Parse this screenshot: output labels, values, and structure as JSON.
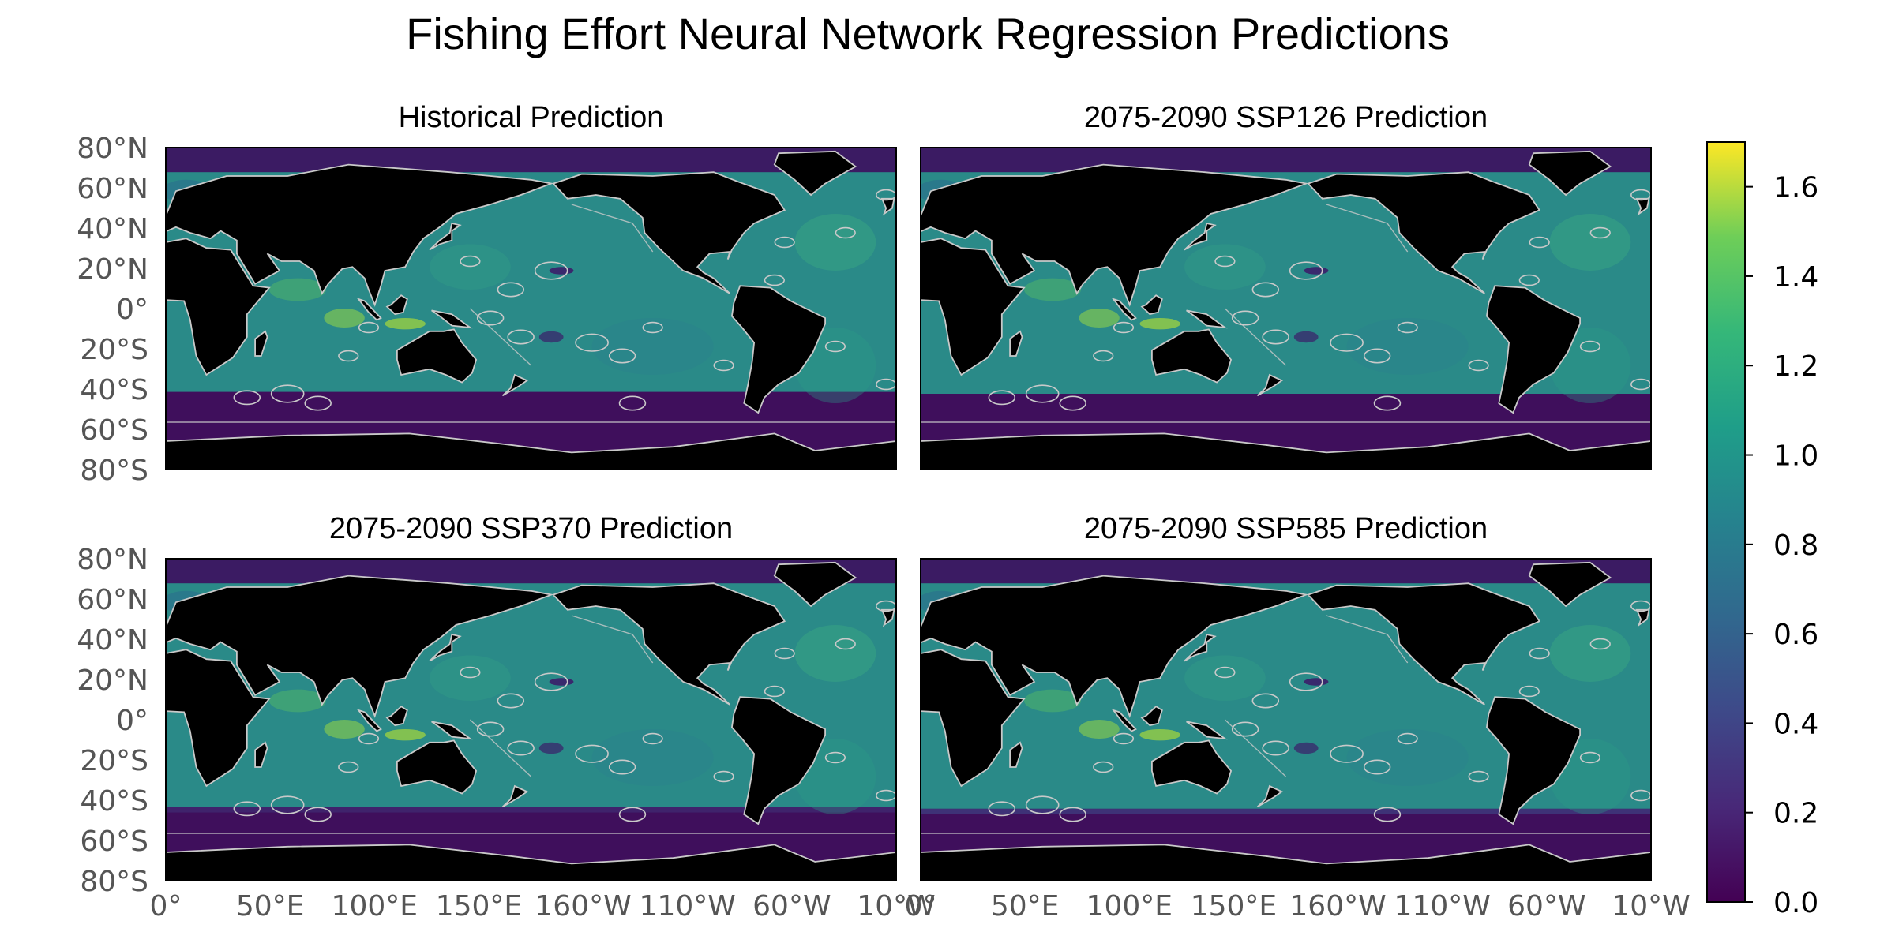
{
  "chart_data": {
    "type": "heatmap",
    "title": "Fishing Effort Neural Network Regression Predictions",
    "panels": [
      {
        "title": "Historical Prediction",
        "scenario": "historical"
      },
      {
        "title": "2075-2090 SSP126 Prediction",
        "scenario": "ssp126"
      },
      {
        "title": "2075-2090 SSP370 Prediction",
        "scenario": "ssp370"
      },
      {
        "title": "2075-2090 SSP585 Prediction",
        "scenario": "ssp585"
      }
    ],
    "x_ticks": [
      "0°",
      "50°E",
      "100°E",
      "150°E",
      "160°W",
      "110°W",
      "60°W",
      "10°W"
    ],
    "y_ticks": [
      "80°N",
      "60°N",
      "40°N",
      "20°N",
      "0°",
      "20°S",
      "40°S",
      "60°S",
      "80°S"
    ],
    "colorbar": {
      "ticks": [
        "0.0",
        "0.2",
        "0.4",
        "0.6",
        "0.8",
        "1.0",
        "1.2",
        "1.4",
        "1.6"
      ],
      "range": [
        0.0,
        1.7
      ],
      "colormap": "viridis"
    },
    "colors": {
      "land": "#000000",
      "boundary_lines": "#c9c9c9",
      "southern_ocean": "#3f0f5c",
      "open_ocean": "#2a8a88",
      "high_effort": "#9fd13a"
    }
  }
}
